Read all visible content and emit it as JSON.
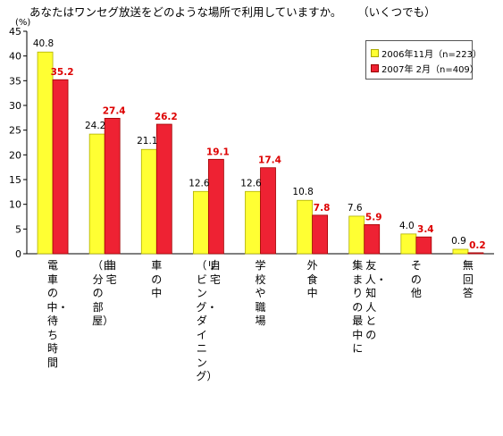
{
  "header": {
    "question": "あなたはワンセグ放送をどのような場所で利用していますか。",
    "note": "（いくつでも）",
    "unit": "(%)"
  },
  "legend": [
    {
      "label": "2006年11月（n=223）",
      "color": "#ffff33"
    },
    {
      "label": "2007年 2月（n=409）",
      "color": "#ee2233"
    }
  ],
  "colors": {
    "series2006": "#ffff33",
    "series2007": "#ee2233",
    "label2007": "#dd0000"
  },
  "chart_data": {
    "type": "bar",
    "categories": [
      [
        "電車の中・待ち時間"
      ],
      [
        "自宅",
        "（自分の部屋）"
      ],
      [
        "車の中"
      ],
      [
        "自宅",
        "（リビング・ダイニング）"
      ],
      [
        "学校や職場"
      ],
      [
        "外食中"
      ],
      [
        "友人・知人との",
        "集まりの最中に"
      ],
      [
        "その他"
      ],
      [
        "無回答"
      ]
    ],
    "series": [
      {
        "name": "2006年11月（n=223）",
        "values": [
          40.8,
          24.2,
          21.1,
          12.6,
          12.6,
          10.8,
          7.6,
          4.0,
          0.9
        ]
      },
      {
        "name": "2007年 2月（n=409）",
        "values": [
          35.2,
          27.4,
          26.2,
          19.1,
          17.4,
          7.8,
          5.9,
          3.4,
          0.2
        ]
      }
    ],
    "ylim": [
      0,
      45
    ],
    "yticks": [
      0,
      5,
      10,
      15,
      20,
      25,
      30,
      35,
      40,
      45
    ],
    "ylabel": "(%)",
    "legend_position": "top-right",
    "grid": false
  }
}
